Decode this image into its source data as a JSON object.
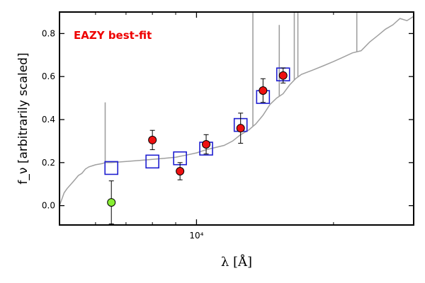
{
  "chart_data": {
    "type": "scatter",
    "annotation": "EAZY best-fit",
    "xlabel": "λ [Å]",
    "ylabel": "f_ν [arbitrarily scaled]",
    "x_scale": "log",
    "xlim": [
      5000,
      30000
    ],
    "ylim": [
      -0.09,
      0.9
    ],
    "yticks": [
      0.0,
      0.2,
      0.4,
      0.6,
      0.8
    ],
    "ytick_labels": [
      "0.0",
      "0.2",
      "0.4",
      "0.6",
      "0.8"
    ],
    "xtick_labels": [
      {
        "value": 10000,
        "label": "10⁴"
      }
    ],
    "colors": {
      "model": "#a0a0a0",
      "model_photometry": "#1f1fd0",
      "detection": "#ee1111",
      "non_detection": "#88ee33",
      "annotation": "#ee0000"
    },
    "model_spectrum": [
      [
        5000,
        0.0
      ],
      [
        5060,
        0.03
      ],
      [
        5120,
        0.06
      ],
      [
        5200,
        0.08
      ],
      [
        5300,
        0.1
      ],
      [
        5400,
        0.12
      ],
      [
        5500,
        0.14
      ],
      [
        5600,
        0.15
      ],
      [
        5700,
        0.17
      ],
      [
        5800,
        0.18
      ],
      [
        5900,
        0.185
      ],
      [
        6000,
        0.19
      ],
      [
        6200,
        0.195
      ],
      [
        6300,
        0.2
      ],
      [
        6500,
        0.2
      ],
      [
        7000,
        0.205
      ],
      [
        7500,
        0.21
      ],
      [
        8000,
        0.215
      ],
      [
        8500,
        0.22
      ],
      [
        9000,
        0.225
      ],
      [
        9500,
        0.235
      ],
      [
        10000,
        0.245
      ],
      [
        10500,
        0.26
      ],
      [
        11000,
        0.27
      ],
      [
        11500,
        0.28
      ],
      [
        12000,
        0.3
      ],
      [
        12500,
        0.33
      ],
      [
        13000,
        0.35
      ],
      [
        13500,
        0.38
      ],
      [
        14000,
        0.42
      ],
      [
        14500,
        0.47
      ],
      [
        15000,
        0.5
      ],
      [
        15500,
        0.52
      ],
      [
        16000,
        0.56
      ],
      [
        16500,
        0.59
      ],
      [
        17000,
        0.61
      ],
      [
        18000,
        0.63
      ],
      [
        19000,
        0.65
      ],
      [
        20000,
        0.67
      ],
      [
        21000,
        0.69
      ],
      [
        22000,
        0.71
      ],
      [
        23000,
        0.72
      ],
      [
        24000,
        0.76
      ],
      [
        25000,
        0.79
      ],
      [
        26000,
        0.82
      ],
      [
        27000,
        0.84
      ],
      [
        28000,
        0.87
      ],
      [
        29000,
        0.86
      ],
      [
        30000,
        0.88
      ]
    ],
    "emission_lines": [
      {
        "x": 6300,
        "y": 0.48
      },
      {
        "x": 13300,
        "y": 0.98
      },
      {
        "x": 15200,
        "y": 0.84
      },
      {
        "x": 16400,
        "y": 0.98
      },
      {
        "x": 16700,
        "y": 0.98
      },
      {
        "x": 22500,
        "y": 0.95
      }
    ],
    "model_photometry": [
      {
        "x": 6500,
        "y": 0.175
      },
      {
        "x": 8000,
        "y": 0.205
      },
      {
        "x": 9200,
        "y": 0.22
      },
      {
        "x": 10500,
        "y": 0.265
      },
      {
        "x": 12500,
        "y": 0.375
      },
      {
        "x": 14000,
        "y": 0.505
      },
      {
        "x": 15500,
        "y": 0.61
      }
    ],
    "observed_photometry": [
      {
        "x": 6500,
        "y": 0.015,
        "err": 0.1,
        "detected": false
      },
      {
        "x": 8000,
        "y": 0.305,
        "err": 0.045,
        "detected": true
      },
      {
        "x": 9200,
        "y": 0.16,
        "err": 0.04,
        "detected": true
      },
      {
        "x": 10500,
        "y": 0.285,
        "err": 0.045,
        "detected": true
      },
      {
        "x": 12500,
        "y": 0.36,
        "err": 0.07,
        "detected": true
      },
      {
        "x": 14000,
        "y": 0.535,
        "err": 0.055,
        "detected": true
      },
      {
        "x": 15500,
        "y": 0.605,
        "err": 0.035,
        "detected": true
      }
    ]
  }
}
